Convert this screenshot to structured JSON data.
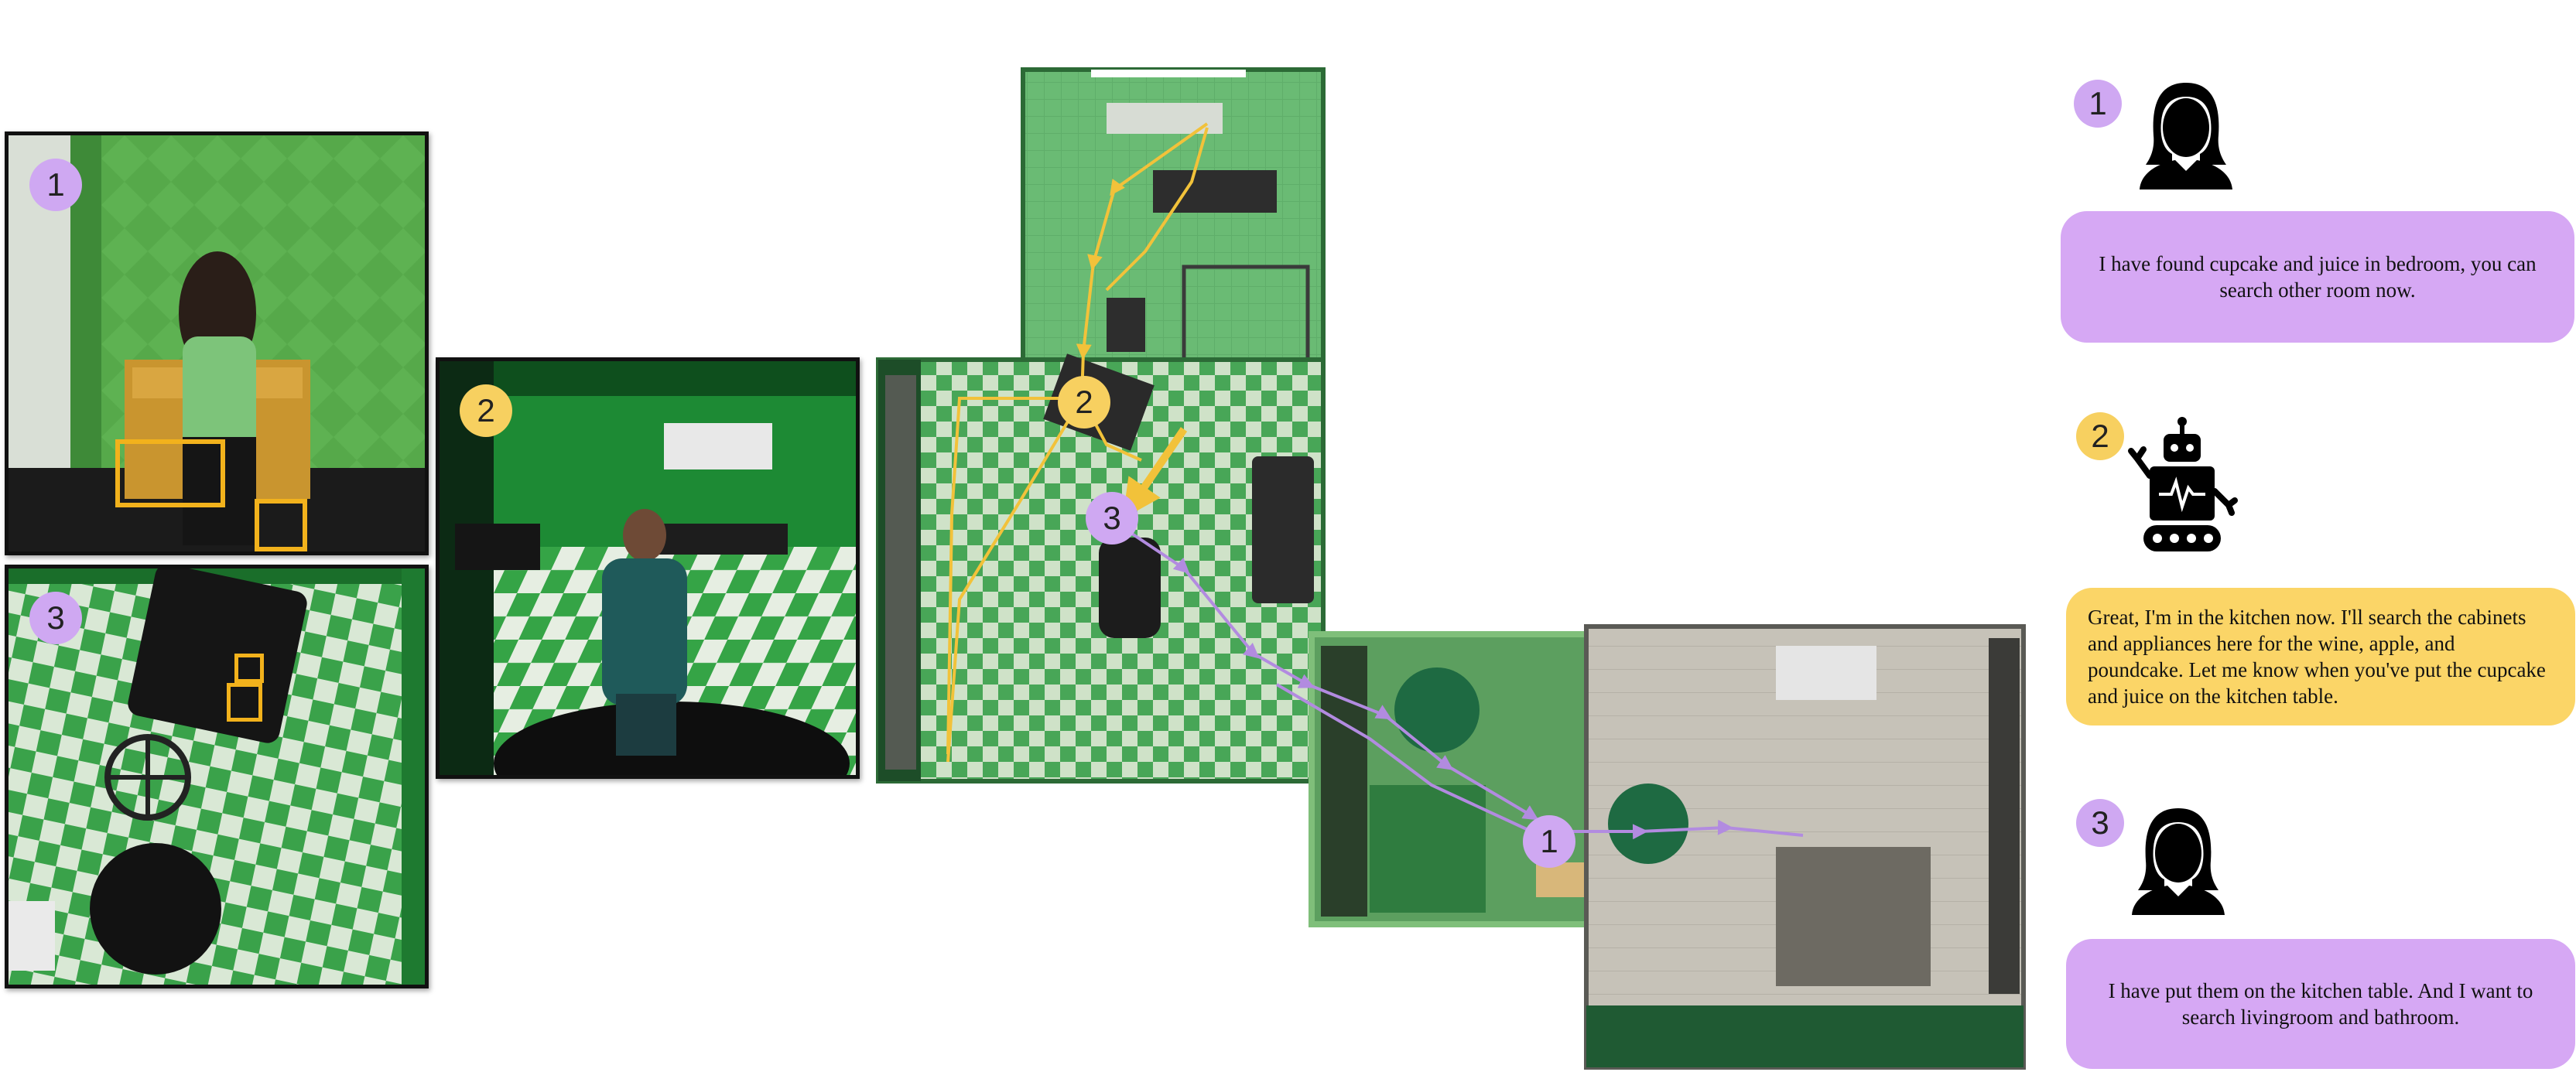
{
  "panels": [
    {
      "badge": "1",
      "badge_color": "#cfa8f2"
    },
    {
      "badge": "2",
      "badge_color": "#f7d060"
    },
    {
      "badge": "3",
      "badge_color": "#cfa8f2"
    }
  ],
  "map": {
    "markers": [
      {
        "label": "2",
        "color": "#f7d060"
      },
      {
        "label": "3",
        "color": "#cfa8f2"
      },
      {
        "label": "1",
        "color": "#cfa8f2"
      }
    ],
    "path_colors": {
      "helper": "#f2c23a",
      "main": "#b28be0"
    }
  },
  "dialogue": [
    {
      "step": "1",
      "speaker_icon": "woman-icon",
      "color": "#d6a8f4",
      "text": "I have found cupcake and juice in bedroom, you can search other room now."
    },
    {
      "step": "2",
      "speaker_icon": "robot-icon",
      "color": "#fbd567",
      "text": "Great, I'm in the kitchen now. I'll search the cabinets and appliances here for the wine, apple, and poundcake. Let me know when you've put the cupcake and juice on the kitchen table."
    },
    {
      "step": "3",
      "speaker_icon": "woman-icon",
      "color": "#d6a8f4",
      "text": "I have put them on the kitchen table. And I want to search livingroom and bathroom."
    }
  ]
}
